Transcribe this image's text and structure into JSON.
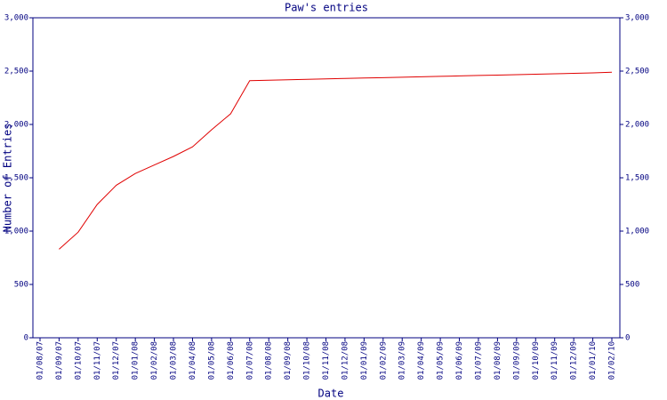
{
  "chart_data": {
    "type": "line",
    "title": "Paw's entries",
    "x_label": "Date",
    "y_label": "Number of Entries",
    "categories": [
      "01/08/07",
      "01/09/07",
      "01/10/07",
      "01/11/07",
      "01/12/07",
      "01/01/08",
      "01/02/08",
      "01/03/08",
      "01/04/08",
      "01/05/08",
      "01/06/08",
      "01/07/08",
      "01/08/08",
      "01/09/08",
      "01/10/08",
      "01/11/08",
      "01/12/08",
      "01/01/09",
      "01/02/09",
      "01/03/09",
      "01/04/09",
      "01/05/09",
      "01/06/09",
      "01/07/09",
      "01/08/09",
      "01/09/09",
      "01/10/09",
      "01/11/09",
      "01/12/09",
      "01/01/10",
      "01/02/10"
    ],
    "series": [
      {
        "name": "Entries",
        "color": "#e00000",
        "values": [
          null,
          830,
          990,
          1250,
          1430,
          1540,
          1620,
          1700,
          1790,
          1950,
          2100,
          2410,
          2415,
          2419,
          2423,
          2427,
          2431,
          2435,
          2439,
          2443,
          2447,
          2451,
          2455,
          2459,
          2463,
          2467,
          2471,
          2475,
          2479,
          2483,
          2490
        ]
      }
    ],
    "ylim": [
      0,
      3000
    ],
    "yticks": [
      0,
      500,
      {
        "value": 1000,
        "label": "1,000"
      },
      {
        "value": 1500,
        "label": "1,500"
      },
      {
        "value": 2000,
        "label": "2,000"
      },
      {
        "value": 2500,
        "label": "2,500"
      },
      {
        "value": 3000,
        "label": "3,000"
      }
    ],
    "right_axis": true
  }
}
